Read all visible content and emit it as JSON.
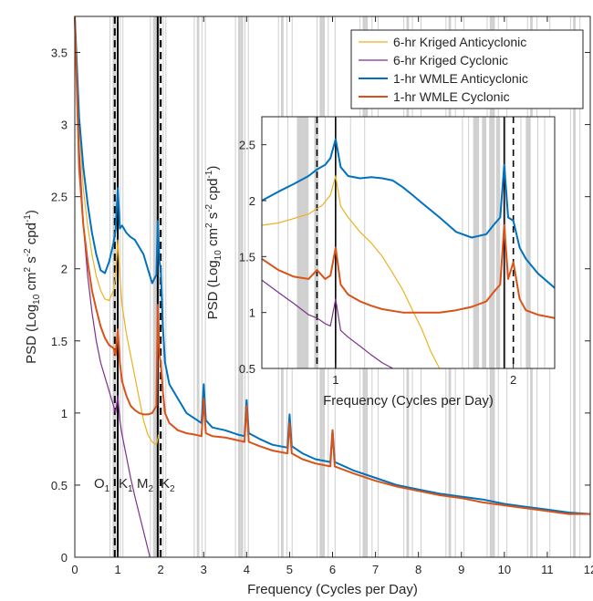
{
  "chart_data": [
    {
      "type": "line",
      "xlabel": "Frequency (Cycles per Day)",
      "ylabel": "PSD (Log",
      "ylabel_sub": "10",
      "ylabel_unit": " cm",
      "ylabel_sup1": "2",
      "ylabel_s": " s",
      "ylabel_sup2": "-2",
      "ylabel_cpd": " cpd",
      "ylabel_sup3": "-1",
      "ylabel_close": ")",
      "xlim": [
        0,
        12
      ],
      "ylim": [
        0,
        3.75
      ],
      "xticks": [
        0,
        1,
        2,
        3,
        4,
        5,
        6,
        7,
        8,
        9,
        10,
        11,
        12
      ],
      "yticks": [
        0,
        0.5,
        1,
        1.5,
        2,
        2.5,
        3,
        3.5
      ],
      "xtick_labels": [
        "0",
        "1",
        "2",
        "3",
        "4",
        "5",
        "6",
        "7",
        "8",
        "9",
        "10",
        "11",
        "12"
      ],
      "ytick_labels": [
        "0",
        "0.5",
        "1",
        "1.5",
        "2",
        "2.5",
        "3",
        "3.5"
      ],
      "grid": false,
      "legend_position": "top-right",
      "tidal_lines": [
        {
          "name": "O",
          "sub": "1",
          "x": 0.93,
          "style": "dashed"
        },
        {
          "name": "K",
          "sub": "1",
          "x": 1.0,
          "style": "solid"
        },
        {
          "name": "M",
          "sub": "2",
          "x": 1.93,
          "style": "solid"
        },
        {
          "name": "K",
          "sub": "2",
          "x": 2.0,
          "style": "dashed"
        }
      ],
      "series": [
        {
          "name": "6-hr Kriged Anticyclonic",
          "color": "#EDB120",
          "x": [
            0,
            0.1,
            0.2,
            0.3,
            0.4,
            0.5,
            0.6,
            0.7,
            0.8,
            0.9,
            0.95,
            1.0,
            1.05,
            1.1,
            1.2,
            1.3,
            1.4,
            1.5,
            1.6,
            1.7,
            1.8,
            1.9,
            1.95
          ],
          "y": [
            3.75,
            3.0,
            2.55,
            2.3,
            2.1,
            1.95,
            1.85,
            1.79,
            1.78,
            1.85,
            1.95,
            2.2,
            1.95,
            1.75,
            1.55,
            1.4,
            1.25,
            1.1,
            0.95,
            0.85,
            0.8,
            0.78,
            0.85
          ]
        },
        {
          "name": "6-hr Kriged Cyclonic",
          "color": "#7E2F8E",
          "x": [
            0,
            0.1,
            0.2,
            0.3,
            0.4,
            0.5,
            0.6,
            0.7,
            0.8,
            0.9,
            0.95,
            1.0,
            1.05,
            1.1,
            1.2,
            1.3,
            1.4,
            1.5,
            1.6,
            1.7,
            1.75
          ],
          "y": [
            3.75,
            2.85,
            2.3,
            1.95,
            1.7,
            1.5,
            1.35,
            1.25,
            1.15,
            1.05,
            1.0,
            1.12,
            0.95,
            0.85,
            0.7,
            0.55,
            0.42,
            0.3,
            0.18,
            0.06,
            0.0
          ]
        },
        {
          "name": "1-hr WMLE Anticyclonic",
          "color": "#0072BD",
          "x": [
            0,
            0.1,
            0.2,
            0.3,
            0.4,
            0.5,
            0.6,
            0.7,
            0.8,
            0.9,
            0.95,
            1.0,
            1.05,
            1.1,
            1.2,
            1.3,
            1.4,
            1.5,
            1.6,
            1.7,
            1.8,
            1.9,
            1.93,
            1.97,
            2.0,
            2.05,
            2.1,
            2.2,
            2.4,
            2.6,
            2.8,
            2.95,
            3.0,
            3.05,
            3.2,
            3.5,
            3.8,
            3.95,
            4.0,
            4.05,
            4.3,
            4.6,
            4.95,
            5.0,
            5.05,
            5.3,
            5.6,
            5.95,
            6.0,
            6.05,
            6.5,
            7.0,
            7.5,
            8.0,
            8.5,
            9.0,
            9.5,
            10.0,
            10.5,
            11.0,
            11.5,
            12.0
          ],
          "y": [
            3.75,
            3.05,
            2.7,
            2.45,
            2.25,
            2.1,
            1.99,
            1.97,
            2.05,
            2.18,
            2.27,
            2.56,
            2.28,
            2.3,
            2.25,
            2.22,
            2.2,
            2.15,
            2.1,
            2.0,
            1.9,
            1.96,
            2.33,
            2.05,
            2.0,
            1.6,
            1.35,
            1.2,
            1.1,
            1.0,
            0.96,
            0.93,
            1.2,
            0.95,
            0.9,
            0.88,
            0.85,
            0.84,
            1.09,
            0.86,
            0.82,
            0.78,
            0.76,
            0.99,
            0.77,
            0.72,
            0.68,
            0.66,
            0.88,
            0.66,
            0.6,
            0.55,
            0.5,
            0.47,
            0.44,
            0.42,
            0.4,
            0.37,
            0.35,
            0.33,
            0.31,
            0.3
          ]
        },
        {
          "name": "1-hr WMLE Cyclonic",
          "color": "#D95319",
          "x": [
            0,
            0.1,
            0.2,
            0.3,
            0.4,
            0.5,
            0.6,
            0.7,
            0.8,
            0.9,
            0.95,
            1.0,
            1.05,
            1.1,
            1.2,
            1.3,
            1.4,
            1.5,
            1.6,
            1.7,
            1.8,
            1.9,
            1.93,
            1.97,
            2.0,
            2.05,
            2.1,
            2.2,
            2.4,
            2.6,
            2.8,
            2.95,
            3.0,
            3.05,
            3.2,
            3.5,
            3.8,
            3.95,
            4.0,
            4.05,
            4.3,
            4.6,
            4.95,
            5.0,
            5.05,
            5.3,
            5.6,
            5.95,
            6.0,
            6.05,
            6.5,
            7.0,
            7.5,
            8.0,
            8.5,
            9.0,
            9.5,
            10.0,
            10.5,
            11.0,
            11.5,
            12.0
          ],
          "y": [
            3.75,
            2.7,
            2.3,
            2.05,
            1.85,
            1.72,
            1.6,
            1.52,
            1.47,
            1.45,
            1.4,
            1.58,
            1.35,
            1.22,
            1.12,
            1.05,
            1.02,
            1.0,
            0.99,
            0.99,
            1.0,
            1.05,
            1.75,
            1.4,
            1.35,
            1.15,
            1.0,
            0.93,
            0.88,
            0.86,
            0.85,
            0.84,
            1.1,
            0.86,
            0.84,
            0.83,
            0.81,
            0.8,
            1.05,
            0.8,
            0.77,
            0.74,
            0.72,
            0.93,
            0.72,
            0.68,
            0.65,
            0.63,
            0.88,
            0.63,
            0.58,
            0.53,
            0.49,
            0.46,
            0.43,
            0.41,
            0.38,
            0.36,
            0.34,
            0.32,
            0.3,
            0.3
          ]
        }
      ],
      "legend": [
        {
          "label": "6-hr Kriged Anticyclonic",
          "color": "#EDB120"
        },
        {
          "label": "6-hr Kriged Cyclonic",
          "color": "#7E2F8E"
        },
        {
          "label": "1-hr WMLE Anticyclonic",
          "color": "#0072BD"
        },
        {
          "label": "1-hr WMLE Cyclonic",
          "color": "#D95319"
        }
      ],
      "tidal_bands": [
        [
          0.88,
          0.92
        ],
        [
          0.92,
          0.96
        ],
        [
          1.82,
          1.9
        ],
        [
          1.9,
          1.98
        ],
        [
          2.84,
          2.9
        ],
        [
          3.8,
          3.86
        ],
        [
          3.86,
          3.92
        ],
        [
          4.8,
          4.86
        ],
        [
          5.7,
          5.76
        ],
        [
          5.76,
          5.82
        ],
        [
          6.7,
          6.76
        ],
        [
          6.76,
          6.82
        ],
        [
          7.72,
          7.78
        ],
        [
          8.7,
          8.76
        ],
        [
          9.66,
          9.72
        ],
        [
          9.72,
          9.78
        ],
        [
          10.6,
          10.66
        ],
        [
          11.6,
          11.66
        ]
      ],
      "tidal_thin_lines": [
        0.82,
        1.06,
        1.12,
        1.76,
        2.06,
        2.12,
        2.78,
        2.96,
        3.04,
        3.74,
        3.96,
        4.04,
        4.74,
        4.94,
        5.06,
        5.64,
        5.9,
        6.06,
        6.64,
        6.92,
        7.06,
        7.66,
        7.86,
        8.06,
        8.64,
        8.86,
        9.06,
        9.6,
        9.86,
        10.06,
        10.54,
        10.76,
        11.06,
        11.54,
        11.76
      ]
    },
    {
      "type": "line",
      "xlabel": "Frequency (Cycles per Day)",
      "ylabel": "PSD (Log",
      "ylabel_sub": "10",
      "ylabel_unit": " cm",
      "ylabel_sup1": "2",
      "ylabel_s": " s",
      "ylabel_sup2": "-2",
      "ylabel_cpd": " cpd",
      "ylabel_sup3": "-1",
      "ylabel_close": ")",
      "xscale": "log",
      "xlim": [
        0.75,
        2.35
      ],
      "ylim": [
        0.5,
        2.75
      ],
      "xticks": [
        1,
        2
      ],
      "yticks": [
        0.5,
        1,
        1.5,
        2,
        2.5
      ],
      "xtick_labels": [
        "1",
        "2"
      ],
      "ytick_labels": [
        "0.5",
        "1",
        "1.5",
        "2",
        "2.5"
      ],
      "grid": false,
      "tidal_lines": [
        {
          "x": 0.93,
          "style": "dashed"
        },
        {
          "x": 1.0,
          "style": "solid"
        },
        {
          "x": 1.93,
          "style": "solid"
        },
        {
          "x": 2.0,
          "style": "dashed"
        }
      ],
      "tidal_bands": [
        [
          0.86,
          0.88
        ],
        [
          0.88,
          0.9
        ],
        [
          0.92,
          0.935
        ],
        [
          1.71,
          1.75
        ],
        [
          1.77,
          1.8
        ],
        [
          1.82,
          1.86
        ],
        [
          1.87,
          1.9
        ],
        [
          2.1,
          2.14
        ]
      ],
      "tidal_thin_lines": [
        0.8,
        0.83,
        0.96,
        1.06,
        1.12,
        1.64,
        1.68,
        1.94,
        2.06,
        2.2,
        2.26
      ],
      "series": [
        {
          "name": "6-hr Kriged Anticyclonic",
          "color": "#EDB120",
          "x": [
            0.75,
            0.8,
            0.85,
            0.9,
            0.95,
            0.98,
            1.0,
            1.02,
            1.05,
            1.1,
            1.15,
            1.2,
            1.25,
            1.3,
            1.35,
            1.4,
            1.45,
            1.5
          ],
          "y": [
            1.78,
            1.8,
            1.84,
            1.88,
            1.96,
            2.05,
            2.22,
            1.95,
            1.85,
            1.72,
            1.62,
            1.5,
            1.35,
            1.2,
            1.02,
            0.85,
            0.65,
            0.5
          ]
        },
        {
          "name": "6-hr Kriged Cyclonic",
          "color": "#7E2F8E",
          "x": [
            0.75,
            0.8,
            0.85,
            0.9,
            0.93,
            0.96,
            0.98,
            1.0,
            1.02,
            1.05,
            1.1,
            1.15,
            1.2,
            1.25
          ],
          "y": [
            1.29,
            1.18,
            1.08,
            0.98,
            0.95,
            0.9,
            0.88,
            1.12,
            0.84,
            0.78,
            0.7,
            0.62,
            0.55,
            0.5
          ]
        },
        {
          "name": "1-hr WMLE Anticyclonic",
          "color": "#0072BD",
          "x": [
            0.75,
            0.8,
            0.85,
            0.9,
            0.93,
            0.96,
            0.98,
            1.0,
            1.02,
            1.05,
            1.1,
            1.15,
            1.2,
            1.25,
            1.3,
            1.35,
            1.4,
            1.5,
            1.6,
            1.7,
            1.8,
            1.85,
            1.9,
            1.93,
            1.96,
            2.0,
            2.05,
            2.1,
            2.2,
            2.35
          ],
          "y": [
            2.0,
            2.08,
            2.15,
            2.22,
            2.28,
            2.32,
            2.38,
            2.55,
            2.3,
            2.22,
            2.2,
            2.21,
            2.2,
            2.18,
            2.12,
            2.05,
            1.98,
            1.85,
            1.72,
            1.67,
            1.7,
            1.78,
            1.85,
            2.32,
            1.85,
            1.82,
            1.58,
            1.48,
            1.35,
            1.22
          ]
        },
        {
          "name": "1-hr WMLE Cyclonic",
          "color": "#D95319",
          "x": [
            0.75,
            0.8,
            0.85,
            0.9,
            0.93,
            0.96,
            0.98,
            1.0,
            1.02,
            1.05,
            1.1,
            1.15,
            1.2,
            1.3,
            1.4,
            1.5,
            1.6,
            1.7,
            1.8,
            1.85,
            1.9,
            1.93,
            1.96,
            2.0,
            2.05,
            2.1,
            2.2,
            2.35
          ],
          "y": [
            1.48,
            1.38,
            1.32,
            1.3,
            1.38,
            1.3,
            1.33,
            1.58,
            1.25,
            1.16,
            1.1,
            1.06,
            1.03,
            1.0,
            1.0,
            1.0,
            1.02,
            1.05,
            1.1,
            1.18,
            1.25,
            1.78,
            1.3,
            1.45,
            1.12,
            1.02,
            0.98,
            0.95
          ]
        }
      ]
    }
  ]
}
